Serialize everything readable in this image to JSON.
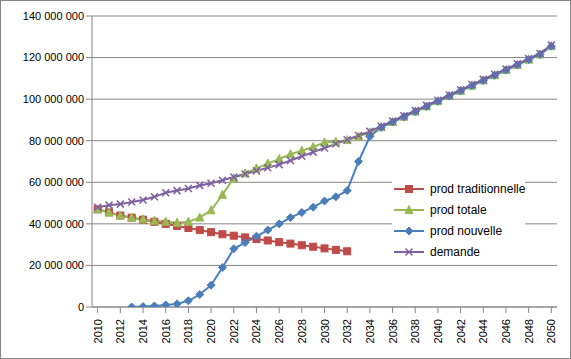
{
  "chart_data": {
    "type": "line",
    "x": [
      2010,
      2011,
      2012,
      2013,
      2014,
      2015,
      2016,
      2017,
      2018,
      2019,
      2020,
      2021,
      2022,
      2023,
      2024,
      2025,
      2026,
      2027,
      2028,
      2029,
      2030,
      2031,
      2032,
      2033,
      2034,
      2035,
      2036,
      2037,
      2038,
      2039,
      2040,
      2041,
      2042,
      2043,
      2044,
      2045,
      2046,
      2047,
      2048,
      2049,
      2050
    ],
    "xlim": [
      2009.5,
      2050.5
    ],
    "xticks": [
      2010,
      2012,
      2014,
      2016,
      2018,
      2020,
      2022,
      2024,
      2026,
      2028,
      2030,
      2032,
      2034,
      2036,
      2038,
      2040,
      2042,
      2044,
      2046,
      2048,
      2050
    ],
    "ylim": [
      0,
      140000000
    ],
    "yticks": [
      0,
      {
        "value": 20000000,
        "label": "20 000 000"
      },
      {
        "value": 40000000,
        "label": "40 000 000"
      },
      {
        "value": 60000000,
        "label": "60 000 000"
      },
      {
        "value": 80000000,
        "label": "80 000 000"
      },
      {
        "value": 100000000,
        "label": "100 000 000"
      },
      {
        "value": 120000000,
        "label": "120 000 000"
      },
      {
        "value": 140000000,
        "label": "140 000 000"
      }
    ],
    "grid": true,
    "legend": "right",
    "series": [
      {
        "name": "prod traditionnelle",
        "color": "#be4b48",
        "marker": "square",
        "values": [
          47000000,
          45500000,
          44000000,
          43000000,
          42000000,
          41000000,
          40000000,
          39000000,
          38000000,
          37000000,
          36000000,
          35000000,
          34300000,
          33500000,
          32700000,
          32000000,
          31200000,
          30500000,
          29700000,
          29000000,
          28200000,
          27500000,
          26800000,
          null,
          null,
          null,
          null,
          null,
          null,
          null,
          null,
          null,
          null,
          null,
          null,
          null,
          null,
          null,
          null,
          null,
          null
        ]
      },
      {
        "name": "prod totale",
        "color": "#98b954",
        "marker": "triangle",
        "values": [
          47000000,
          45500000,
          44000000,
          43000000,
          42200000,
          41500000,
          41000000,
          40500000,
          41000000,
          43000000,
          46500000,
          54000000,
          62000000,
          64300000,
          66700000,
          69000000,
          71200000,
          73500000,
          75200000,
          77000000,
          79200000,
          79500000,
          80300000,
          82000000,
          84000000,
          86500000,
          89000000,
          91500000,
          94000000,
          96500000,
          99000000,
          101500000,
          104000000,
          106500000,
          109000000,
          111500000,
          114000000,
          116500000,
          119000000,
          121500000,
          125500000
        ]
      },
      {
        "name": "prod nouvelle",
        "color": "#4a7ebb",
        "marker": "diamond",
        "values": [
          null,
          null,
          null,
          0,
          200000,
          500000,
          1000000,
          1500000,
          3000000,
          6000000,
          10500000,
          19000000,
          28000000,
          31000000,
          34000000,
          37000000,
          40000000,
          43000000,
          45500000,
          48000000,
          51000000,
          53000000,
          56000000,
          70000000,
          82000000,
          86500000,
          89000000,
          91500000,
          94000000,
          96500000,
          99000000,
          101500000,
          104000000,
          106500000,
          109000000,
          111500000,
          114000000,
          116500000,
          119000000,
          121500000,
          125500000
        ]
      },
      {
        "name": "demande",
        "color": "#7d60a0",
        "marker": "x",
        "values": [
          48000000,
          49000000,
          49500000,
          50500000,
          51500000,
          53000000,
          55000000,
          56000000,
          57000000,
          58500000,
          59500000,
          61000000,
          62500000,
          64000000,
          65500000,
          67000000,
          68500000,
          70500000,
          72500000,
          74500000,
          76500000,
          78500000,
          80500000,
          82500000,
          84500000,
          87000000,
          89500000,
          92000000,
          94500000,
          97000000,
          99500000,
          102000000,
          104500000,
          107000000,
          109500000,
          112000000,
          114500000,
          117000000,
          119500000,
          122000000,
          126000000
        ]
      }
    ]
  }
}
